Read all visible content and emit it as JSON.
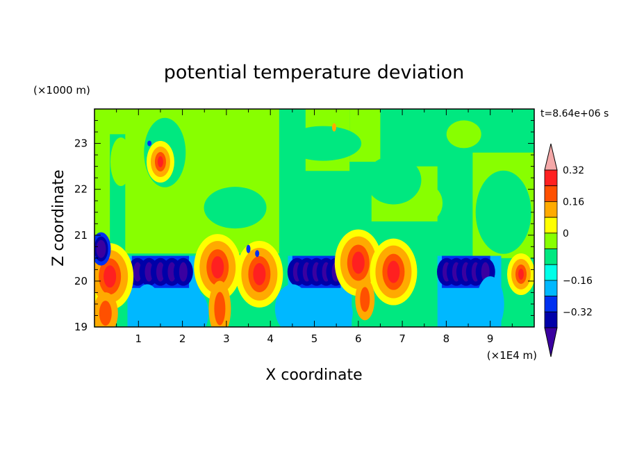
{
  "chart_data": {
    "type": "heatmap",
    "title": "potential temperature deviation",
    "xlabel": "X coordinate",
    "ylabel": "Z coordinate",
    "x_unit_label": "(×1E4 m)",
    "y_unit_label": "(×1000 m)",
    "time_label": "t=8.64e+06 s",
    "xlim": [
      0,
      10
    ],
    "ylim": [
      19,
      23.75
    ],
    "x_ticks": [
      1,
      2,
      3,
      4,
      5,
      6,
      7,
      8,
      9
    ],
    "y_ticks": [
      19,
      20,
      21,
      22,
      23
    ],
    "colorbar": {
      "levels": [
        -0.4,
        -0.36,
        -0.32,
        -0.28,
        -0.24,
        -0.2,
        -0.16,
        -0.12,
        -0.08,
        -0.04,
        0,
        0.04,
        0.08,
        0.12,
        0.16,
        0.2,
        0.24,
        0.28,
        0.32,
        0.36,
        0.4
      ],
      "colors": [
        "#3a00a0",
        "#0000a8",
        "#0030f0",
        "#00b8ff",
        "#00ffe8",
        "#00e880",
        "#88ff00",
        "#ffff00",
        "#ffaa00",
        "#ff5000",
        "#ff2020",
        "#f4a8a8"
      ],
      "band_bounds": [
        -0.4,
        -0.32,
        -0.24,
        -0.16,
        -0.08,
        -0.04,
        0,
        0.08,
        0.16,
        0.24,
        0.32,
        0.4
      ],
      "tick_labels": [
        "0.32",
        "0.16",
        "0",
        "−0.16",
        "−0.32"
      ],
      "tick_values": [
        0.32,
        0.16,
        0,
        -0.16,
        -0.32
      ]
    },
    "features": [
      {
        "kind": "cold-core",
        "x": 0.15,
        "z": 20.7,
        "value": -0.4
      },
      {
        "kind": "cold-band",
        "x_start": 0.85,
        "x_end": 2.15,
        "z": 20.2,
        "value": -0.36
      },
      {
        "kind": "cold-band",
        "x_start": 4.5,
        "x_end": 5.6,
        "z": 20.2,
        "value": -0.36
      },
      {
        "kind": "cold-band",
        "x_start": 7.9,
        "x_end": 9.0,
        "z": 20.2,
        "value": -0.36
      },
      {
        "kind": "warm-core",
        "x": 0.35,
        "z": 20.1,
        "value": 0.4
      },
      {
        "kind": "warm-core",
        "x": 2.8,
        "z": 20.3,
        "value": 0.4
      },
      {
        "kind": "warm-core",
        "x": 3.75,
        "z": 20.15,
        "value": 0.35
      },
      {
        "kind": "warm-core",
        "x": 6.0,
        "z": 20.4,
        "value": 0.36
      },
      {
        "kind": "warm-core",
        "x": 6.8,
        "z": 20.2,
        "value": 0.32
      },
      {
        "kind": "warm-core",
        "x": 1.5,
        "z": 22.6,
        "value": 0.3
      },
      {
        "kind": "warm-core",
        "x": 9.7,
        "z": 20.15,
        "value": 0.28
      }
    ]
  }
}
